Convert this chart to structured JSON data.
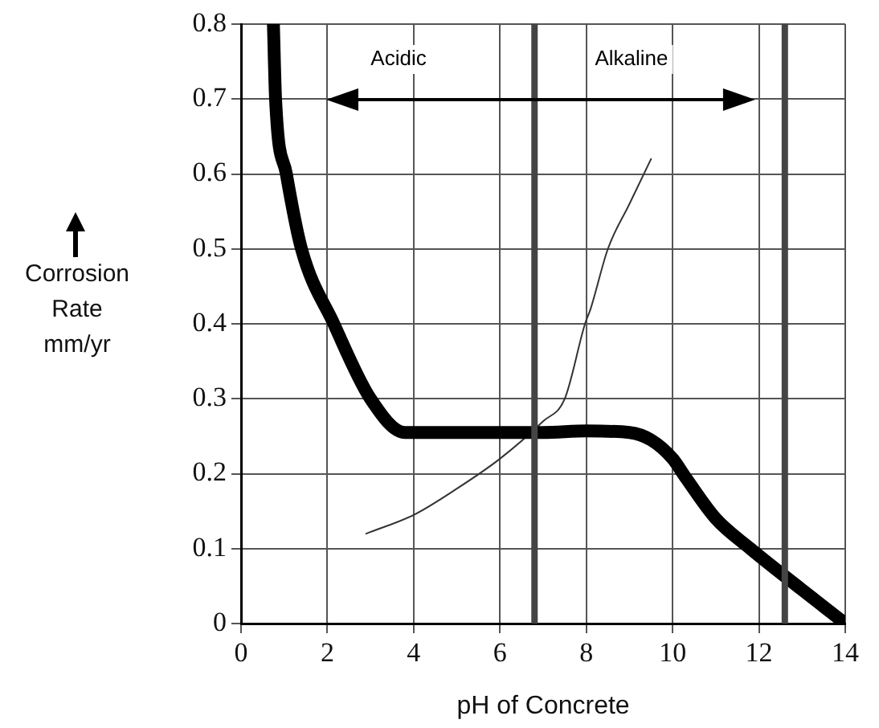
{
  "chart_data": {
    "type": "line",
    "xlabel": "pH of Concrete",
    "ylabel": "Corrosion Rate mm/yr",
    "xlim": [
      0,
      14
    ],
    "xticks": [
      0,
      2,
      4,
      6,
      8,
      10,
      12,
      14
    ],
    "ylim": [
      0,
      0.8
    ],
    "yticks": [
      0,
      0.1,
      0.2,
      0.3,
      0.4,
      0.5,
      0.6,
      0.7,
      0.8
    ],
    "grid": true,
    "legend": false,
    "marker": "none",
    "series": [
      {
        "color": "#000000",
        "x": [
          0.75,
          0.8,
          1.05,
          1.4,
          2.15,
          3,
          3.8,
          5,
          7,
          8,
          9,
          9.5,
          10,
          10.3,
          11,
          11.8,
          13,
          14
        ],
        "values": [
          0.8,
          0.7,
          0.6,
          0.5,
          0.4,
          0.3,
          0.255,
          0.255,
          0.255,
          0.257,
          0.255,
          0.245,
          0.22,
          0.195,
          0.14,
          0.1,
          0.045,
          0
        ]
      },
      {
        "color": "#333333",
        "x": [
          2.9,
          4,
          5,
          6,
          7,
          7.5,
          7.97,
          8.1,
          8.5,
          9,
          9.5
        ],
        "values": [
          0.12,
          0.145,
          0.18,
          0.22,
          0.27,
          0.3,
          0.4,
          0.42,
          0.5,
          0.56,
          0.62
        ]
      }
    ],
    "ref_lines": [
      {
        "axis": "x",
        "value": 6.8,
        "color": "#444444",
        "line_style": "solid"
      },
      {
        "axis": "x",
        "value": 12.6,
        "color": "#444444",
        "line_style": "solid"
      }
    ],
    "annotations": [
      "Acidic",
      "Alkaline"
    ]
  }
}
